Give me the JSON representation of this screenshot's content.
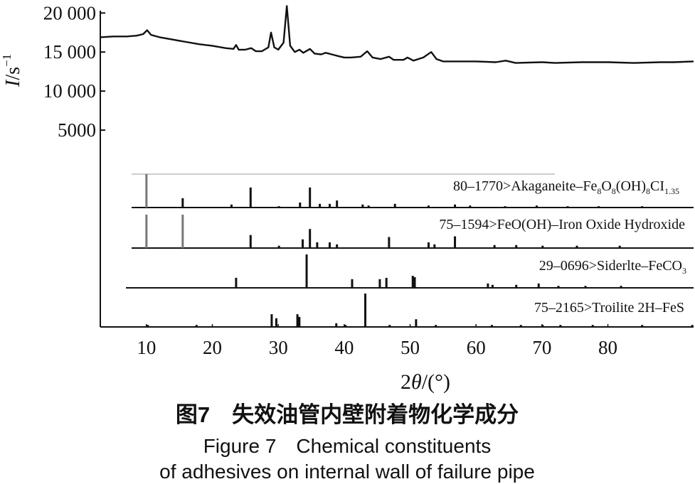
{
  "chart_data": {
    "type": "line",
    "x_label": {
      "prefix": "2",
      "symbol": "θ",
      "suffix": "/(°)"
    },
    "y_label": {
      "symbol": "I",
      "text": "/s",
      "superscript": "−1"
    },
    "xlim": [
      3,
      93
    ],
    "xticks": [
      10,
      20,
      30,
      40,
      50,
      60,
      70,
      80
    ],
    "ylim": [
      -20200,
      20300
    ],
    "yticks": [
      {
        "value": 20000,
        "label": "20 000"
      },
      {
        "value": 15000,
        "label": "15 000"
      },
      {
        "value": 10000,
        "label": "10 000"
      },
      5000
    ],
    "grid": false,
    "x": [
      3,
      5,
      7,
      8.5,
      9.5,
      10.1,
      10.7,
      12,
      14,
      16,
      18,
      20,
      22,
      23.2,
      23.6,
      24,
      25,
      25.9,
      26.6,
      27.5,
      28.5,
      28.9,
      29.4,
      30,
      30.8,
      31.3,
      31.8,
      32.5,
      33.2,
      33.8,
      34.8,
      35.5,
      36.5,
      37.2,
      38.1,
      39,
      40,
      41,
      42.5,
      43.5,
      44.3,
      45.5,
      46.8,
      47.5,
      49,
      49.6,
      50.5,
      52,
      53.2,
      54,
      55,
      57,
      60,
      63,
      64.5,
      66,
      70,
      72,
      76,
      80,
      84,
      88,
      90,
      93
    ],
    "series": [
      {
        "color": "#111111",
        "values": [
          16900,
          17000,
          17000,
          17100,
          17300,
          17800,
          17200,
          16900,
          16600,
          16300,
          16000,
          15800,
          15500,
          15400,
          15900,
          15300,
          15300,
          15500,
          15100,
          15100,
          15600,
          17500,
          15600,
          15300,
          16200,
          20900,
          15800,
          15000,
          15300,
          14900,
          15400,
          14800,
          14700,
          14900,
          14700,
          14500,
          14300,
          14300,
          14400,
          15100,
          14300,
          14100,
          14400,
          14000,
          14000,
          14300,
          13900,
          14300,
          15000,
          14100,
          13800,
          13800,
          13800,
          13700,
          13900,
          13600,
          13700,
          13600,
          13700,
          13700,
          13600,
          13700,
          13700,
          13800
        ]
      }
    ],
    "reference_patterns": [
      {
        "label_parts": [
          {
            "text": "80–1770>Akaganeite–Fe"
          },
          {
            "text": "8",
            "sub": true
          },
          {
            "text": "O"
          },
          {
            "text": "8",
            "sub": true
          },
          {
            "text": "(OH)"
          },
          {
            "text": "8",
            "sub": true
          },
          {
            "text": "CI"
          },
          {
            "text": "1.35",
            "sub": true
          }
        ],
        "two_theta": [
          10.0,
          15.5,
          22.9,
          25.8,
          30.1,
          33.3,
          34.8,
          36.3,
          37.8,
          38.9,
          42.8,
          43.7,
          47.7,
          52.8,
          56.8,
          59.1,
          64.4,
          69.2,
          73.9,
          78.6,
          85.2
        ],
        "intensity": [
          100,
          28,
          9,
          60,
          4,
          15,
          60,
          11,
          11,
          21,
          9,
          6,
          11,
          6,
          9,
          6,
          4,
          6,
          4,
          4,
          4
        ]
      },
      {
        "label_parts": [
          {
            "text": "75–1594>FeO(OH)–Iron Oxide Hydroxide"
          }
        ],
        "two_theta": [
          10.0,
          15.5,
          25.8,
          30.1,
          33.7,
          34.8,
          35.9,
          37.8,
          38.9,
          46.8,
          52.8,
          53.7,
          56.8,
          62.8,
          66.1,
          70.1,
          75.3,
          81.8
        ],
        "intensity": [
          100,
          100,
          39,
          7,
          26,
          57,
          17,
          17,
          11,
          33,
          17,
          11,
          35,
          9,
          9,
          7,
          7,
          7
        ]
      },
      {
        "label_parts": [
          {
            "text": "29–0696>Siderlte–FeCO"
          },
          {
            "text": "3",
            "sub": true
          }
        ],
        "two_theta": [
          23.6,
          34.3,
          41.2,
          45.4,
          46.4,
          50.4,
          50.7,
          61.8,
          62.5,
          66.1,
          69.5,
          72.5,
          76.6,
          82.0
        ],
        "intensity": [
          30,
          100,
          26,
          26,
          30,
          36,
          32,
          13,
          9,
          9,
          13,
          6,
          6,
          6
        ]
      },
      {
        "label_parts": [
          {
            "text": "75–2165>Troilite 2H–FeS"
          }
        ],
        "two_theta": [
          10.2,
          17.6,
          29.0,
          29.7,
          32.9,
          33.2,
          38.8,
          40.2,
          43.2,
          46.9,
          50.9,
          53.9,
          62.4,
          66.8,
          70.1,
          72.8,
          77.7,
          85.2,
          92.8
        ],
        "intensity": [
          6,
          6,
          38,
          26,
          38,
          30,
          11,
          6,
          100,
          6,
          23,
          6,
          6,
          6,
          6,
          6,
          6,
          6,
          6
        ]
      }
    ]
  },
  "caption": {
    "lines": [
      "图7　失效油管内壁附着物化学成分",
      "Figure 7　Chemical constituents",
      "of adhesives on internal wall of failure pipe"
    ]
  }
}
